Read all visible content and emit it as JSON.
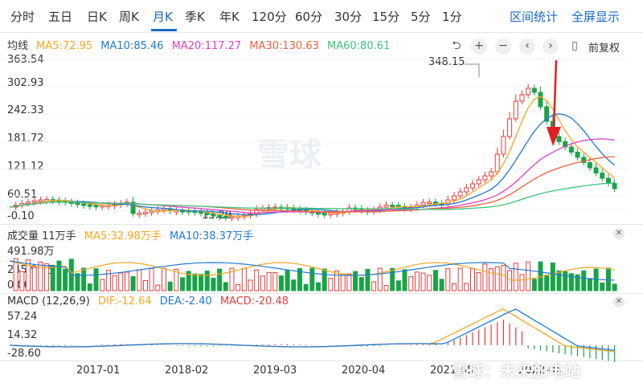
{
  "tabs": [
    {
      "label": "分时",
      "active": false
    },
    {
      "label": "五日",
      "active": false
    },
    {
      "label": "日K",
      "active": false
    },
    {
      "label": "周K",
      "active": false
    },
    {
      "label": "月K",
      "active": true
    },
    {
      "label": "季K",
      "active": false
    },
    {
      "label": "年K",
      "active": false
    },
    {
      "label": "120分",
      "active": false
    },
    {
      "label": "60分",
      "active": false
    },
    {
      "label": "30分",
      "active": false
    },
    {
      "label": "15分",
      "active": false
    },
    {
      "label": "5分",
      "active": false
    },
    {
      "label": "1分",
      "active": false
    }
  ],
  "tab_actions": {
    "interval_stats": "区间统计",
    "fullscreen": "全屏显示"
  },
  "price_panel": {
    "title": "均线",
    "ma": [
      {
        "label": "MA5:72.95",
        "color": "#f5a623"
      },
      {
        "label": "MA10:85.46",
        "color": "#1f78d1"
      },
      {
        "label": "MA20:117.27",
        "color": "#e040c0"
      },
      {
        "label": "MA30:130.63",
        "color": "#f06040"
      },
      {
        "label": "MA60:80.61",
        "color": "#3cc47c"
      }
    ],
    "y_ticks": [
      "363.54",
      "302.93",
      "242.33",
      "181.72",
      "121.12",
      "60.51",
      "-0.10"
    ],
    "high_label": "348.15",
    "low_label": "13.29"
  },
  "tools": {
    "undo_icon": "undo-icon",
    "plus_icon": "zoom-in-icon",
    "minus_icon": "zoom-out-icon",
    "left_icon": "chevron-left-icon",
    "right_icon": "chevron-right-icon",
    "candle_icon": "candle-icon",
    "adjust_label": "前复权"
  },
  "volume_panel": {
    "title": "成交量 11万手",
    "ma": [
      {
        "label": "MA5:32.98万手",
        "color": "#f5a623"
      },
      {
        "label": "MA10:38.37万手",
        "color": "#1f78d1"
      }
    ],
    "y_ticks": [
      "491.98万",
      "245.99万",
      "0.00"
    ]
  },
  "macd_panel": {
    "title": "MACD (12,26,9)",
    "lines": [
      {
        "label": "DIF:-12.64",
        "color": "#f5a623"
      },
      {
        "label": "DEA:-2.40",
        "color": "#1f78d1"
      },
      {
        "label": "MACD:-20.48",
        "color": "#e04040"
      }
    ],
    "y_ticks": [
      "57.24",
      "14.32",
      "-28.60"
    ]
  },
  "dates": [
    "2017-01",
    "2018-02",
    "2019-03",
    "2020-04",
    "2021-05",
    "2022-06"
  ],
  "watermark": "雪球：未来加电站",
  "bg_watermark": "雪球",
  "colors": {
    "up": "#e23c3c",
    "down": "#19a348",
    "accent": "#1869c8",
    "arrow": "#e02020"
  }
}
